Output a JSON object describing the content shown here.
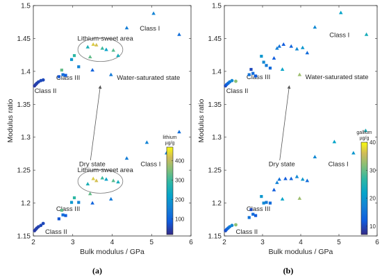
{
  "chart_data": [
    {
      "type": "scatter",
      "panel_label": "(a)",
      "xlabel": "Bulk modulus / GPa",
      "ylabel": "Modulus ratio",
      "xlim": [
        2,
        6
      ],
      "ylim": [
        1.15,
        1.5
      ],
      "xticks": [
        "2",
        "3",
        "4",
        "5",
        "6"
      ],
      "yticks": [
        "1.15",
        "1.2",
        "1.25",
        "1.3",
        "1.35",
        "1.4",
        "1.45",
        "1.5"
      ],
      "grid": false,
      "colorbar": {
        "title_line1": "lithium",
        "title_line2": "µg/g",
        "min": 20,
        "max": 470,
        "ticks": [
          "100",
          "200",
          "300",
          "400"
        ],
        "tick_values": [
          100,
          200,
          300,
          400
        ]
      },
      "annotations": [
        {
          "text": "Class I",
          "x": 4.7,
          "y": 1.462
        },
        {
          "text": "Lithium-sweet area",
          "x": 3.12,
          "y": 1.447
        },
        {
          "text": "Class III",
          "x": 2.58,
          "y": 1.387
        },
        {
          "text": "Class II",
          "x": 2.03,
          "y": 1.367
        },
        {
          "text": "Water-saturated state",
          "x": 4.12,
          "y": 1.387
        },
        {
          "text": "Dry state",
          "x": 3.16,
          "y": 1.256
        },
        {
          "text": "Class I",
          "x": 4.72,
          "y": 1.256
        },
        {
          "text": "Lithium-sweet area",
          "x": 3.12,
          "y": 1.247
        },
        {
          "text": "Class III",
          "x": 2.58,
          "y": 1.188
        },
        {
          "text": "Class II",
          "x": 2.3,
          "y": 1.153
        }
      ],
      "ellipses": [
        {
          "cx": 3.7,
          "cy": 1.433,
          "rx": 0.57,
          "ry": 0.018
        },
        {
          "cx": 3.7,
          "cy": 1.233,
          "rx": 0.57,
          "ry": 0.018
        }
      ],
      "arrow": {
        "from": [
          3.45,
          1.265
        ],
        "to": [
          3.7,
          1.378
        ]
      },
      "series": [
        {
          "marker": "circle",
          "points": [
            [
              2.03,
              1.158,
              40
            ],
            [
              2.06,
              1.16,
              45
            ],
            [
              2.09,
              1.162,
              50
            ],
            [
              2.13,
              1.164,
              50
            ],
            [
              2.19,
              1.166,
              60
            ],
            [
              2.25,
              1.169,
              60
            ],
            [
              2.03,
              1.378,
              40
            ],
            [
              2.06,
              1.38,
              45
            ],
            [
              2.09,
              1.382,
              50
            ],
            [
              2.13,
              1.384,
              55
            ],
            [
              2.19,
              1.386,
              60
            ],
            [
              2.25,
              1.387,
              60
            ]
          ]
        },
        {
          "marker": "square",
          "points": [
            [
              2.65,
              1.176,
              80
            ],
            [
              2.72,
              1.189,
              330
            ],
            [
              2.75,
              1.182,
              120
            ],
            [
              2.82,
              1.181,
              90
            ],
            [
              2.97,
              1.201,
              200
            ],
            [
              3.04,
              1.208,
              290
            ],
            [
              3.15,
              1.201,
              160
            ],
            [
              2.65,
              1.392,
              80
            ],
            [
              2.72,
              1.402,
              330
            ],
            [
              2.75,
              1.395,
              120
            ],
            [
              2.82,
              1.394,
              90
            ],
            [
              2.97,
              1.418,
              200
            ],
            [
              3.04,
              1.424,
              290
            ],
            [
              3.15,
              1.407,
              160
            ]
          ]
        },
        {
          "marker": "triangle",
          "points": [
            [
              3.38,
              1.229,
              260
            ],
            [
              3.44,
              1.214,
              330
            ],
            [
              3.5,
              1.2,
              100
            ],
            [
              3.52,
              1.237,
              430
            ],
            [
              3.6,
              1.234,
              420
            ],
            [
              3.75,
              1.238,
              300
            ],
            [
              3.85,
              1.236,
              220
            ],
            [
              3.97,
              1.206,
              140
            ],
            [
              4.03,
              1.234,
              320
            ],
            [
              4.15,
              1.232,
              250
            ],
            [
              4.37,
              1.268,
              150
            ],
            [
              4.88,
              1.292,
              160
            ],
            [
              5.38,
              1.276,
              150
            ],
            [
              5.7,
              1.308,
              120
            ],
            [
              3.38,
              1.437,
              260
            ],
            [
              3.44,
              1.422,
              330
            ],
            [
              3.5,
              1.402,
              100
            ],
            [
              3.52,
              1.441,
              430
            ],
            [
              3.6,
              1.44,
              420
            ],
            [
              3.75,
              1.435,
              300
            ],
            [
              3.85,
              1.433,
              220
            ],
            [
              3.97,
              1.395,
              140
            ],
            [
              4.03,
              1.432,
              320
            ],
            [
              4.15,
              1.424,
              250
            ],
            [
              4.37,
              1.466,
              150
            ],
            [
              5.05,
              1.488,
              160
            ],
            [
              5.7,
              1.456,
              120
            ]
          ]
        }
      ]
    },
    {
      "type": "scatter",
      "panel_label": "(b)",
      "xlabel": "Bulk modulus / GPa",
      "ylabel": "Modulus ratio",
      "xlim": [
        2,
        6
      ],
      "ylim": [
        1.15,
        1.5
      ],
      "xticks": [
        "2",
        "3",
        "4",
        "5",
        "6"
      ],
      "yticks": [
        "1.15",
        "1.2",
        "1.25",
        "1.3",
        "1.35",
        "1.4",
        "1.45",
        "1.5"
      ],
      "grid": false,
      "colorbar": {
        "title_line1": "gallium",
        "title_line2": "µg/g",
        "min": 7,
        "max": 40,
        "ticks": [
          "10",
          "20",
          "30",
          "40"
        ],
        "tick_values": [
          10,
          20,
          30,
          40
        ]
      },
      "annotations": [
        {
          "text": "Class I",
          "x": 4.75,
          "y": 1.452
        },
        {
          "text": "Class III",
          "x": 2.58,
          "y": 1.388
        },
        {
          "text": "Class II",
          "x": 2.05,
          "y": 1.367
        },
        {
          "text": "Water-saturated state",
          "x": 4.12,
          "y": 1.388
        },
        {
          "text": "Dry state",
          "x": 3.16,
          "y": 1.256
        },
        {
          "text": "Class I",
          "x": 4.72,
          "y": 1.256
        },
        {
          "text": "Class III",
          "x": 2.58,
          "y": 1.188
        },
        {
          "text": "Class II",
          "x": 2.3,
          "y": 1.153
        }
      ],
      "arrow": {
        "from": [
          3.45,
          1.265
        ],
        "to": [
          3.7,
          1.378
        ]
      },
      "series": [
        {
          "marker": "circle",
          "points": [
            [
              2.03,
              1.158,
              10
            ],
            [
              2.06,
              1.16,
              12
            ],
            [
              2.1,
              1.162,
              14
            ],
            [
              2.14,
              1.164,
              16
            ],
            [
              2.2,
              1.166,
              18
            ],
            [
              2.3,
              1.167,
              32
            ],
            [
              2.03,
              1.378,
              10
            ],
            [
              2.06,
              1.38,
              12
            ],
            [
              2.1,
              1.382,
              14
            ],
            [
              2.14,
              1.384,
              16
            ],
            [
              2.2,
              1.386,
              18
            ],
            [
              2.3,
              1.385,
              32
            ]
          ]
        },
        {
          "marker": "square",
          "points": [
            [
              2.65,
              1.178,
              15
            ],
            [
              2.7,
              1.19,
              10
            ],
            [
              2.75,
              1.183,
              14
            ],
            [
              2.82,
              1.181,
              12
            ],
            [
              2.97,
              1.21,
              20
            ],
            [
              3.03,
              1.2,
              18
            ],
            [
              3.1,
              1.201,
              16
            ],
            [
              3.2,
              1.2,
              14
            ],
            [
              2.65,
              1.395,
              15
            ],
            [
              2.7,
              1.403,
              10
            ],
            [
              2.75,
              1.397,
              14
            ],
            [
              2.82,
              1.393,
              12
            ],
            [
              2.97,
              1.423,
              20
            ],
            [
              3.03,
              1.414,
              18
            ],
            [
              3.1,
              1.409,
              16
            ],
            [
              3.2,
              1.405,
              14
            ]
          ]
        },
        {
          "marker": "triangle",
          "points": [
            [
              3.3,
              1.22,
              12
            ],
            [
              3.38,
              1.231,
              17
            ],
            [
              3.44,
              1.236,
              15
            ],
            [
              3.52,
              1.206,
              22
            ],
            [
              3.6,
              1.237,
              12
            ],
            [
              3.75,
              1.237,
              13
            ],
            [
              3.9,
              1.24,
              18
            ],
            [
              3.97,
              1.207,
              33
            ],
            [
              4.05,
              1.236,
              20
            ],
            [
              4.17,
              1.234,
              14
            ],
            [
              4.37,
              1.27,
              18
            ],
            [
              4.88,
              1.293,
              22
            ],
            [
              5.38,
              1.276,
              20
            ],
            [
              5.7,
              1.31,
              24
            ],
            [
              3.3,
              1.42,
              12
            ],
            [
              3.38,
              1.435,
              17
            ],
            [
              3.44,
              1.438,
              15
            ],
            [
              3.52,
              1.403,
              22
            ],
            [
              3.55,
              1.441,
              12
            ],
            [
              3.75,
              1.438,
              13
            ],
            [
              3.9,
              1.434,
              18
            ],
            [
              3.97,
              1.395,
              33
            ],
            [
              4.05,
              1.436,
              20
            ],
            [
              4.17,
              1.428,
              14
            ],
            [
              4.37,
              1.467,
              18
            ],
            [
              5.05,
              1.489,
              22
            ],
            [
              5.72,
              1.456,
              24
            ]
          ]
        }
      ]
    }
  ]
}
